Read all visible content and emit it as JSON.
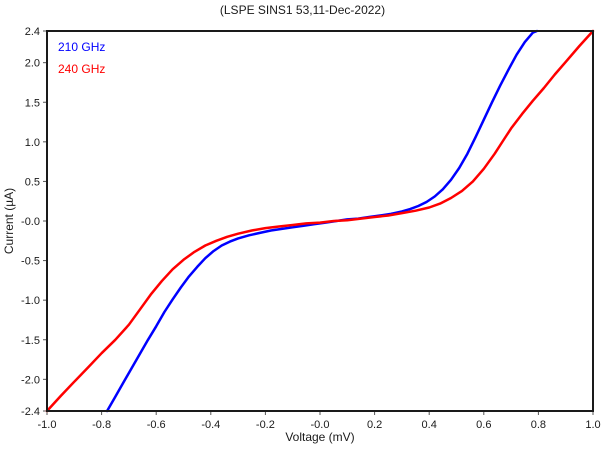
{
  "chart_data": {
    "type": "line",
    "title": "(LSPE SINS1 53,11-Dec-2022)",
    "xlabel": "Voltage (mV)",
    "ylabel": "Current (µA)",
    "xlim": [
      -1.0,
      1.0
    ],
    "ylim": [
      -2.4,
      2.4
    ],
    "grid": false,
    "legend_position": "top-left-inside",
    "frame_color": "#1a1a1a",
    "tick_color": "#555555",
    "label_color": "#1a1a1a",
    "xticks": [
      {
        "v": -1.0,
        "label": "-1.0"
      },
      {
        "v": -0.8,
        "label": "-0.8"
      },
      {
        "v": -0.6,
        "label": "-0.6"
      },
      {
        "v": -0.4,
        "label": "-0.4"
      },
      {
        "v": -0.2,
        "label": "-0.2"
      },
      {
        "v": 0.0,
        "label": "-0.0"
      },
      {
        "v": 0.2,
        "label": "0.2"
      },
      {
        "v": 0.4,
        "label": "0.4"
      },
      {
        "v": 0.6,
        "label": "0.6"
      },
      {
        "v": 0.8,
        "label": "0.8"
      },
      {
        "v": 1.0,
        "label": "1.0"
      }
    ],
    "yticks": [
      {
        "v": 2.4,
        "label": "2.4"
      },
      {
        "v": 2.0,
        "label": "2.0"
      },
      {
        "v": 1.5,
        "label": "1.5"
      },
      {
        "v": 1.0,
        "label": "1.0"
      },
      {
        "v": 0.5,
        "label": "0.5"
      },
      {
        "v": 0.0,
        "label": "-0.0"
      },
      {
        "v": -0.5,
        "label": "-0.5"
      },
      {
        "v": -1.0,
        "label": "-1.0"
      },
      {
        "v": -1.5,
        "label": "-1.5"
      },
      {
        "v": -2.0,
        "label": "-2.0"
      },
      {
        "v": -2.4,
        "label": "-2.4"
      }
    ],
    "series": [
      {
        "name": "210 GHz",
        "color": "#0000ff",
        "points": [
          [
            -0.78,
            -2.4
          ],
          [
            -0.75,
            -2.22
          ],
          [
            -0.72,
            -2.04
          ],
          [
            -0.69,
            -1.86
          ],
          [
            -0.66,
            -1.68
          ],
          [
            -0.63,
            -1.5
          ],
          [
            -0.6,
            -1.33
          ],
          [
            -0.57,
            -1.15
          ],
          [
            -0.54,
            -0.99
          ],
          [
            -0.51,
            -0.84
          ],
          [
            -0.48,
            -0.7
          ],
          [
            -0.45,
            -0.58
          ],
          [
            -0.42,
            -0.47
          ],
          [
            -0.39,
            -0.38
          ],
          [
            -0.36,
            -0.31
          ],
          [
            -0.33,
            -0.26
          ],
          [
            -0.3,
            -0.22
          ],
          [
            -0.26,
            -0.18
          ],
          [
            -0.22,
            -0.15
          ],
          [
            -0.18,
            -0.12
          ],
          [
            -0.14,
            -0.1
          ],
          [
            -0.1,
            -0.08
          ],
          [
            -0.06,
            -0.06
          ],
          [
            -0.02,
            -0.04
          ],
          [
            0.02,
            -0.02
          ],
          [
            0.06,
            0.0
          ],
          [
            0.1,
            0.02
          ],
          [
            0.14,
            0.03
          ],
          [
            0.18,
            0.05
          ],
          [
            0.22,
            0.07
          ],
          [
            0.26,
            0.09
          ],
          [
            0.3,
            0.12
          ],
          [
            0.33,
            0.15
          ],
          [
            0.36,
            0.19
          ],
          [
            0.39,
            0.24
          ],
          [
            0.42,
            0.31
          ],
          [
            0.45,
            0.4
          ],
          [
            0.48,
            0.52
          ],
          [
            0.51,
            0.67
          ],
          [
            0.54,
            0.85
          ],
          [
            0.57,
            1.06
          ],
          [
            0.6,
            1.28
          ],
          [
            0.63,
            1.5
          ],
          [
            0.66,
            1.71
          ],
          [
            0.69,
            1.91
          ],
          [
            0.72,
            2.1
          ],
          [
            0.75,
            2.26
          ],
          [
            0.78,
            2.38
          ],
          [
            0.795,
            2.4
          ]
        ]
      },
      {
        "name": "240 GHz",
        "color": "#ff0000",
        "points": [
          [
            -1.0,
            -2.4
          ],
          [
            -0.95,
            -2.21
          ],
          [
            -0.9,
            -2.03
          ],
          [
            -0.85,
            -1.85
          ],
          [
            -0.8,
            -1.67
          ],
          [
            -0.75,
            -1.5
          ],
          [
            -0.7,
            -1.31
          ],
          [
            -0.66,
            -1.12
          ],
          [
            -0.62,
            -0.93
          ],
          [
            -0.58,
            -0.76
          ],
          [
            -0.54,
            -0.61
          ],
          [
            -0.5,
            -0.49
          ],
          [
            -0.46,
            -0.39
          ],
          [
            -0.42,
            -0.31
          ],
          [
            -0.38,
            -0.25
          ],
          [
            -0.34,
            -0.2
          ],
          [
            -0.3,
            -0.16
          ],
          [
            -0.25,
            -0.12
          ],
          [
            -0.2,
            -0.09
          ],
          [
            -0.15,
            -0.07
          ],
          [
            -0.1,
            -0.05
          ],
          [
            -0.05,
            -0.03
          ],
          [
            0.0,
            -0.02
          ],
          [
            0.05,
            0.0
          ],
          [
            0.1,
            0.01
          ],
          [
            0.15,
            0.03
          ],
          [
            0.2,
            0.05
          ],
          [
            0.25,
            0.07
          ],
          [
            0.3,
            0.1
          ],
          [
            0.35,
            0.13
          ],
          [
            0.4,
            0.17
          ],
          [
            0.44,
            0.22
          ],
          [
            0.48,
            0.29
          ],
          [
            0.52,
            0.38
          ],
          [
            0.56,
            0.5
          ],
          [
            0.6,
            0.66
          ],
          [
            0.64,
            0.85
          ],
          [
            0.67,
            1.01
          ],
          [
            0.7,
            1.17
          ],
          [
            0.74,
            1.35
          ],
          [
            0.78,
            1.52
          ],
          [
            0.82,
            1.68
          ],
          [
            0.86,
            1.85
          ],
          [
            0.9,
            2.01
          ],
          [
            0.95,
            2.21
          ],
          [
            1.0,
            2.4
          ]
        ]
      }
    ]
  }
}
